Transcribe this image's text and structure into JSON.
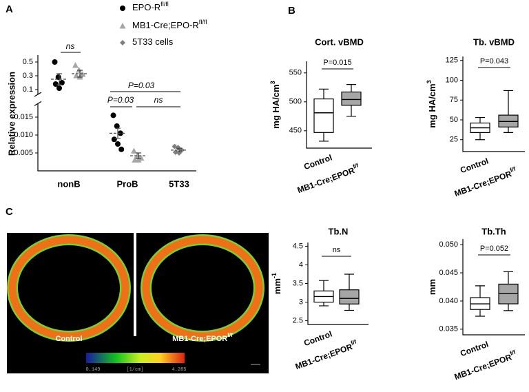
{
  "labels": {
    "A": "A",
    "B": "B",
    "C": "C"
  },
  "chart_data": [
    {
      "type": "dot",
      "y_label": "Relative expression",
      "categories": [
        "nonB",
        "ProB",
        "5T33"
      ],
      "series": [
        {
          "name": "EPO-R",
          "name_sup": "fl/fl",
          "color": "#000000",
          "marker": "circle",
          "values": [
            0.25,
            0.0105,
            null
          ],
          "errors": [
            0.08,
            0.0014,
            null
          ],
          "points": [
            [
              0.5,
              0.28,
              0.2,
              0.18,
              0.12
            ],
            [
              0.0155,
              0.0125,
              0.0105,
              0.0088,
              0.0075,
              0.006
            ],
            null
          ]
        },
        {
          "name": "MB1-Cre;EPO-R",
          "name_sup": "fl/fl",
          "color": "#a6a6a6",
          "marker": "triangle",
          "values": [
            0.33,
            0.0042,
            null
          ],
          "errors": [
            0.05,
            0.0008,
            null
          ],
          "points": [
            [
              0.45,
              0.38,
              0.32,
              0.3,
              0.28
            ],
            [
              0.0055,
              0.0042,
              0.0035,
              0.003,
              0.003
            ],
            null
          ]
        },
        {
          "name": "5T33 cells",
          "color": "#7f7f7f",
          "marker": "diamond",
          "values": [
            null,
            null,
            0.0058
          ],
          "errors": [
            null,
            null,
            0.0005
          ],
          "points": [
            null,
            null,
            [
              0.0068,
              0.0065,
              0.0058,
              0.0052,
              0.005
            ]
          ]
        }
      ],
      "segments": [
        {
          "ylim": [
            0,
            0.018
          ],
          "yticks": [
            0.005,
            {
              "value": 0.01,
              "label": "0.010"
            },
            0.015
          ]
        },
        {
          "ylim": [
            0.05,
            0.6
          ],
          "yticks": [
            0.1,
            0.3,
            0.5
          ]
        }
      ],
      "annotations": [
        "ns",
        "P=0.03",
        "P=0.03",
        "ns"
      ]
    },
    {
      "type": "box",
      "title": "Cort. vBMD",
      "y_label": "mg HA/cm",
      "y_label_sup": "3",
      "categories": [
        "Control",
        "MB1-Cre;EPOR"
      ],
      "category_sups": [
        null,
        "f/f"
      ],
      "colors": [
        "#ffffff",
        "#a6a6a6"
      ],
      "boxes": [
        {
          "min": 432,
          "q1": 447,
          "median": 481,
          "q3": 505,
          "max": 522
        },
        {
          "min": 475,
          "q1": 494,
          "median": 504,
          "q3": 517,
          "max": 530
        }
      ],
      "ylim": [
        420,
        570
      ],
      "yticks": [
        450,
        500,
        550
      ],
      "annotation": "P=0.015"
    },
    {
      "type": "box",
      "title": "Tb. vBMD",
      "y_label": "mg HA/cm",
      "y_label_sup": "3",
      "categories": [
        "Control",
        "MB1-Cre;EPOR"
      ],
      "category_sups": [
        null,
        "f/f"
      ],
      "colors": [
        "#ffffff",
        "#a6a6a6"
      ],
      "boxes": [
        {
          "min": 25,
          "q1": 34,
          "median": 40,
          "q3": 46,
          "max": 53
        },
        {
          "min": 34,
          "q1": 41,
          "median": 48,
          "q3": 56,
          "max": 87
        }
      ],
      "ylim": [
        10,
        130
      ],
      "yticks": [
        25,
        50,
        75,
        100,
        125
      ],
      "annotation": "P=0.043"
    },
    {
      "type": "box",
      "title": "Tb.N",
      "y_label": "mm",
      "y_label_sup": "-1",
      "categories": [
        "Control",
        "MB1-Cre;EPOR"
      ],
      "category_sups": [
        null,
        "f/f"
      ],
      "colors": [
        "#ffffff",
        "#a6a6a6"
      ],
      "boxes": [
        {
          "min": 2.9,
          "q1": 3.0,
          "median": 3.15,
          "q3": 3.3,
          "max": 3.58
        },
        {
          "min": 2.78,
          "q1": 2.95,
          "median": 3.1,
          "q3": 3.33,
          "max": 3.75
        }
      ],
      "ylim": [
        2.4,
        4.6
      ],
      "yticks": [
        2.5,
        3.0,
        3.5,
        4.0,
        4.5
      ],
      "annotation": "ns"
    },
    {
      "type": "box",
      "title": "Tb.Th",
      "y_label": "mm",
      "categories": [
        "Control",
        "MB1-Cre;EPOR"
      ],
      "category_sups": [
        null,
        "f/f"
      ],
      "colors": [
        "#ffffff",
        "#a6a6a6"
      ],
      "boxes": [
        {
          "min": 0.0373,
          "q1": 0.0385,
          "median": 0.0395,
          "q3": 0.0406,
          "max": 0.0427
        },
        {
          "min": 0.0383,
          "q1": 0.0395,
          "median": 0.0413,
          "q3": 0.043,
          "max": 0.0452
        }
      ],
      "ylim": [
        0.034,
        0.051
      ],
      "yticks": [
        {
          "value": 0.035,
          "label": "0.035"
        },
        {
          "value": 0.04,
          "label": "0.040"
        },
        {
          "value": 0.045,
          "label": "0.045"
        },
        {
          "value": 0.05,
          "label": "0.050"
        }
      ],
      "annotation": "P=0.052"
    }
  ],
  "image_panel": {
    "labels": [
      "Control",
      "MB1-Cre;EPOR"
    ],
    "label_sups": [
      null,
      "f/f"
    ],
    "colorbar": {
      "min_label": "0.149",
      "unit": "[1/cm]",
      "max_label": "4.285"
    }
  }
}
